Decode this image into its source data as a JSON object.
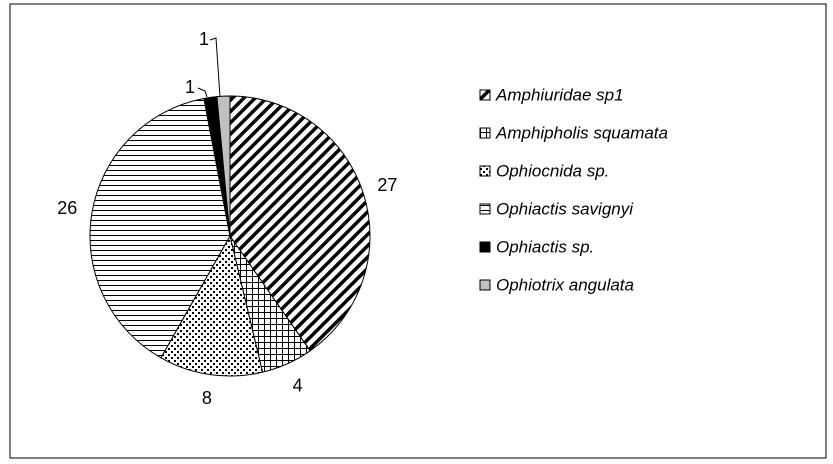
{
  "chart_data": {
    "type": "pie",
    "categories": [
      "Amphiuridae sp1",
      "Amphipholis squamata",
      "Ophiocnida sp.",
      "Ophiactis savignyi",
      "Ophiactis sp.",
      "Ophiotrix angulata"
    ],
    "values": [
      27,
      4,
      8,
      26,
      1,
      1
    ],
    "legend": "right"
  }
}
